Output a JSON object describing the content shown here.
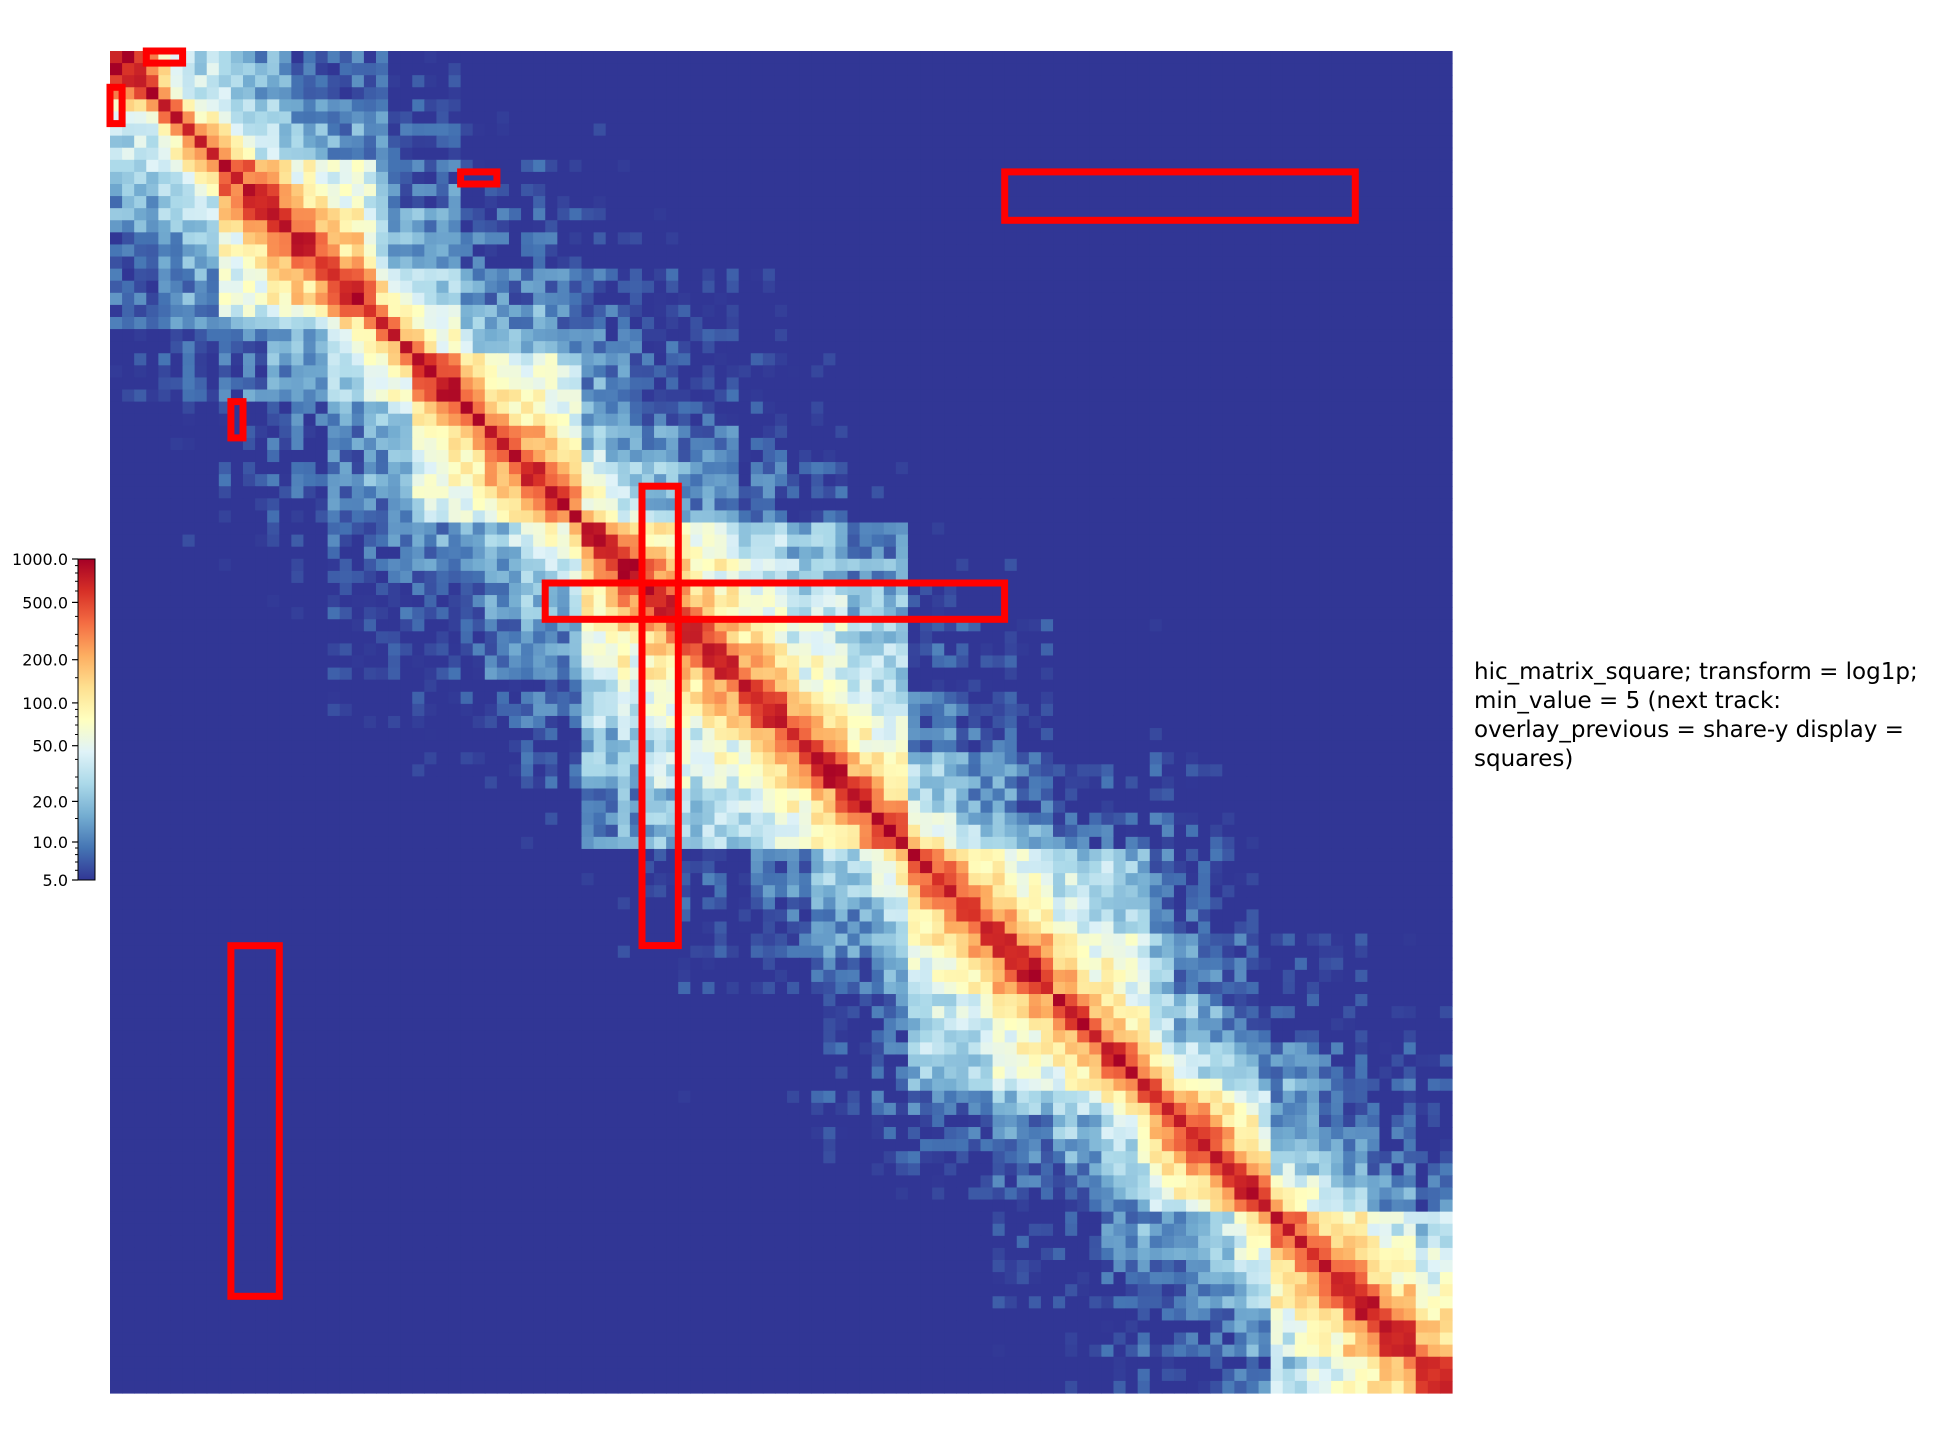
{
  "chart_data": {
    "type": "heatmap",
    "title": "",
    "xlabel": "",
    "ylabel": "",
    "track_label": "hic_matrix_square; transform = log1p; min_value = 5 (next track: overlay_previous = share-y display = squares)",
    "matrix_bins": 111,
    "value_scale": "log1p",
    "min_value": 5,
    "max_value": 1000,
    "colormap": [
      "#313695",
      "#4575b4",
      "#74add1",
      "#abd9e9",
      "#e0f3f8",
      "#ffffbf",
      "#fee090",
      "#fdae61",
      "#f46d43",
      "#d73027",
      "#a50026"
    ],
    "colorbar": {
      "ticks": [
        1000,
        500,
        200,
        100,
        50,
        20,
        10,
        5
      ],
      "tick_labels": [
        "1000.0",
        "500.0",
        "200.0",
        "100.0",
        "50.0",
        "20.0",
        "10.0",
        "5.0"
      ],
      "placement": "left"
    },
    "domains": [
      [
        0,
        4
      ],
      [
        9,
        22
      ],
      [
        25,
        39
      ],
      [
        39,
        66
      ],
      [
        66,
        86
      ],
      [
        86,
        96
      ],
      [
        96,
        111
      ]
    ],
    "highlight_color": "#ff0000",
    "highlights": [
      {
        "bins_x": [
          3,
          6
        ],
        "bins_y": [
          0,
          1
        ]
      },
      {
        "bins_x": [
          0,
          1
        ],
        "bins_y": [
          3,
          6
        ]
      },
      {
        "bins_x": [
          29,
          32
        ],
        "bins_y": [
          10,
          11
        ]
      },
      {
        "bins_x": [
          74,
          103
        ],
        "bins_y": [
          10,
          14
        ]
      },
      {
        "bins_x": [
          10,
          11
        ],
        "bins_y": [
          29,
          32
        ]
      },
      {
        "bins_x": [
          44,
          47
        ],
        "bins_y": [
          36,
          74
        ]
      },
      {
        "bins_x": [
          36,
          74
        ],
        "bins_y": [
          44,
          47
        ]
      },
      {
        "bins_x": [
          10,
          14
        ],
        "bins_y": [
          74,
          103
        ]
      }
    ]
  }
}
